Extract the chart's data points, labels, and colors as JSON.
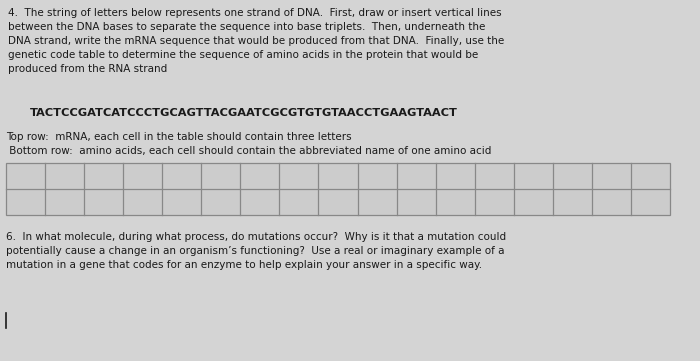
{
  "bg_color": "#d4d4d4",
  "text_color": "#1a1a1a",
  "title_q4": "4.  The string of letters below represents one strand of DNA.  First, draw or insert vertical lines\nbetween the DNA bases to separate the sequence into base triplets.  Then, underneath the\nDNA strand, write the mRNA sequence that would be produced from that DNA.  Finally, use the\ngenetic code table to determine the sequence of amino acids in the protein that would be\nproduced from the RNA strand",
  "dna_sequence": "TACTCCGATCATCCCTGCAGTTACGAATCGCGTGTGTAACCTGAAGTAACT",
  "table_note_top": "Top row:  mRNA, each cell in the table should contain three letters",
  "table_note_bottom": " Bottom row:  amino acids, each cell should contain the abbreviated name of one amino acid",
  "num_cols": 17,
  "num_rows": 2,
  "title_q6": "6.  In what molecule, during what process, do mutations occur?  Why is it that a mutation could\npotentially cause a change in an organism’s functioning?  Use a real or imaginary example of a\nmutation in a gene that codes for an enzyme to help explain your answer in a specific way.",
  "cursor_line": true,
  "table_face_color": "#cccccc",
  "table_edge_color": "#888888"
}
